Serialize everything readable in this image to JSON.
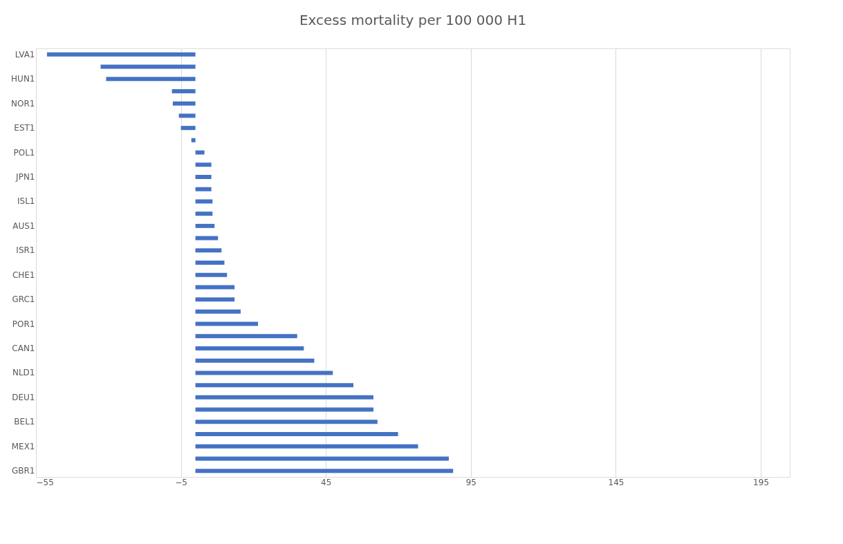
{
  "chart_data": {
    "type": "bar",
    "orientation": "horizontal",
    "title": "Excess mortality per 100 000 H1",
    "categories": [
      "LVA1",
      null,
      "HUN1",
      null,
      "NOR1",
      null,
      "EST1",
      null,
      "POL1",
      null,
      "JPN1",
      null,
      "ISL1",
      null,
      "AUS1",
      null,
      "ISR1",
      null,
      "CHE1",
      null,
      "GRC1",
      null,
      "POR1",
      null,
      "CAN1",
      null,
      "NLD1",
      null,
      "DEU1",
      null,
      "BEL1",
      null,
      "MEX1",
      null,
      "GBR1"
    ],
    "values": [
      -51.2,
      -32.7,
      -30.8,
      -8.1,
      -7.8,
      -5.7,
      -5.0,
      -1.4,
      3.1,
      5.5,
      5.5,
      5.5,
      5.9,
      5.9,
      6.6,
      7.8,
      9.0,
      10.0,
      10.9,
      13.5,
      13.5,
      15.6,
      21.6,
      35.1,
      37.4,
      41.0,
      47.4,
      54.5,
      61.4,
      61.4,
      62.8,
      69.9,
      76.8,
      87.4,
      88.9
    ],
    "color": "#4472c4",
    "xlim": [
      -55,
      205
    ],
    "xticks": [
      -55,
      -5,
      45,
      95,
      145,
      195
    ],
    "grid": "x"
  }
}
